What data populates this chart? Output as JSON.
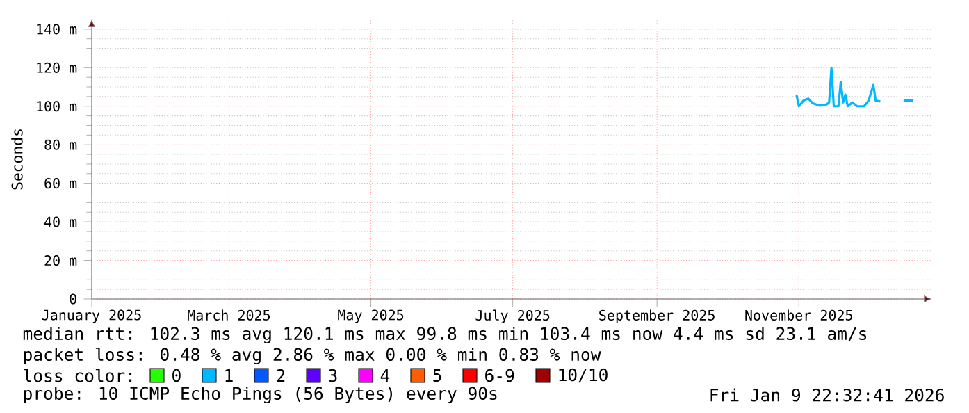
{
  "chart_data": {
    "type": "line",
    "ylabel": "Seconds",
    "legend_title": "loss color:",
    "legend": "bottom",
    "grid": true,
    "x": [
      "2025-10-31",
      "2025-11-01",
      "2025-11-03",
      "2025-11-05",
      "2025-11-07",
      "2025-11-10",
      "2025-11-13",
      "2025-11-14",
      "2025-11-15",
      "2025-11-16",
      "2025-11-18",
      "2025-11-19",
      "2025-11-20",
      "2025-11-21",
      "2025-11-22",
      "2025-11-24",
      "2025-11-26",
      "2025-11-29",
      "2025-12-01",
      "2025-12-03",
      "2025-12-04",
      "2025-12-06",
      "2025-12-12",
      "2025-12-16",
      "2025-12-20"
    ],
    "xlim": [
      "2025-01-01",
      "2025-12-28"
    ],
    "xticks": [
      {
        "value": "2025-01-01",
        "label": "January 2025"
      },
      {
        "value": "2025-03-01",
        "label": "March 2025"
      },
      {
        "value": "2025-05-01",
        "label": "May 2025"
      },
      {
        "value": "2025-07-01",
        "label": "July 2025"
      },
      {
        "value": "2025-09-01",
        "label": "September 2025"
      },
      {
        "value": "2025-11-01",
        "label": "November 2025"
      }
    ],
    "ylim": [
      0,
      145
    ],
    "yticks": [
      {
        "value": 0,
        "label": "0"
      },
      {
        "value": 20,
        "label": "20 m"
      },
      {
        "value": 40,
        "label": "40 m"
      },
      {
        "value": 60,
        "label": "60 m"
      },
      {
        "value": 80,
        "label": "80 m"
      },
      {
        "value": 100,
        "label": "100 m"
      },
      {
        "value": 120,
        "label": "120 m"
      },
      {
        "value": 140,
        "label": "140 m"
      }
    ],
    "series": [
      {
        "name": "0",
        "color": "#26ff00",
        "values": [
          null,
          null,
          null,
          null,
          null,
          null,
          null,
          null,
          null,
          null,
          null,
          null,
          null,
          null,
          null,
          null,
          null,
          null,
          null,
          null,
          null,
          null,
          null,
          null,
          null
        ]
      },
      {
        "name": "1",
        "color": "#00b8ff",
        "values": [
          105.8,
          100,
          103,
          104,
          101.5,
          100.3,
          101,
          102,
          120,
          100,
          100,
          112.7,
          102,
          106,
          100,
          102,
          100,
          100,
          103,
          111,
          103,
          102.5,
          null,
          103,
          103
        ]
      },
      {
        "name": "2",
        "color": "#0059ff",
        "values": [
          null,
          null,
          null,
          null,
          null,
          null,
          null,
          null,
          null,
          null,
          null,
          null,
          null,
          null,
          null,
          null,
          null,
          null,
          null,
          null,
          null,
          null,
          null,
          null,
          null
        ]
      },
      {
        "name": "3",
        "color": "#5e00ff",
        "values": [
          null,
          null,
          null,
          null,
          null,
          null,
          null,
          null,
          null,
          null,
          null,
          null,
          null,
          null,
          null,
          null,
          null,
          null,
          null,
          null,
          null,
          null,
          null,
          null,
          null
        ]
      },
      {
        "name": "4",
        "color": "#ff00ff",
        "values": [
          null,
          null,
          null,
          null,
          null,
          null,
          null,
          null,
          null,
          null,
          null,
          null,
          null,
          null,
          null,
          null,
          null,
          null,
          null,
          null,
          null,
          null,
          null,
          null,
          null
        ]
      },
      {
        "name": "5",
        "color": "#ff5e00",
        "values": [
          null,
          null,
          null,
          null,
          null,
          null,
          null,
          null,
          null,
          null,
          null,
          null,
          null,
          null,
          null,
          null,
          null,
          null,
          null,
          null,
          null,
          null,
          null,
          null,
          null
        ]
      },
      {
        "name": "6-9",
        "color": "#ff0000",
        "values": [
          null,
          null,
          null,
          null,
          null,
          null,
          null,
          null,
          null,
          null,
          null,
          null,
          null,
          null,
          null,
          null,
          null,
          null,
          null,
          null,
          null,
          null,
          null,
          null,
          null
        ]
      },
      {
        "name": "10/10",
        "color": "#a10000",
        "values": [
          null,
          null,
          null,
          null,
          null,
          null,
          null,
          null,
          null,
          null,
          null,
          null,
          null,
          null,
          null,
          null,
          null,
          null,
          null,
          null,
          null,
          null,
          null,
          null,
          null
        ]
      }
    ],
    "annotations": [
      "median rtt: 102.3 ms avg 120.1 ms max 99.8 ms min 103.4 ms now 4.4 ms sd 23.1 am/s",
      "packet loss: 0.48 % avg 2.86 % max 0.00 % min 0.83 % now",
      "probe: 10 ICMP Echo Pings (56 Bytes) every 90s",
      "Fri Jan 9 22:32:41 2026"
    ]
  }
}
